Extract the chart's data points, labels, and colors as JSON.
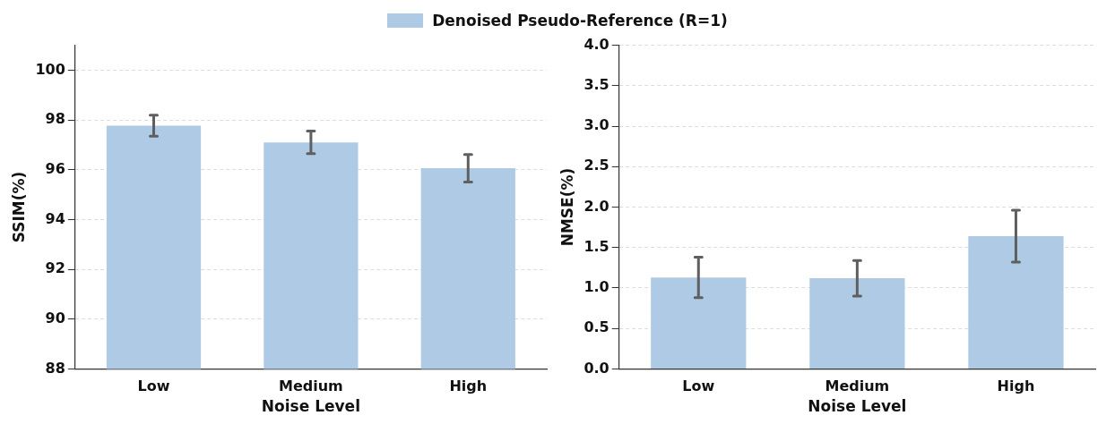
{
  "chart_data": [
    {
      "type": "bar",
      "xlabel": "Noise Level",
      "ylabel": "SSIM(%)",
      "categories": [
        "Low",
        "Medium",
        "High"
      ],
      "series": [
        {
          "name": "Denoised Pseudo-Reference (R=1)",
          "color": "#aecae4",
          "values": [
            97.77,
            97.1,
            96.06
          ],
          "errors": [
            0.42,
            0.45,
            0.55
          ]
        }
      ],
      "ylim": [
        88,
        101
      ],
      "yticks": [
        88,
        90,
        92,
        94,
        96,
        98,
        100
      ],
      "grid": "y",
      "legend": "top"
    },
    {
      "type": "bar",
      "xlabel": "Noise Level",
      "ylabel": "NMSE(%)",
      "categories": [
        "Low",
        "Medium",
        "High"
      ],
      "series": [
        {
          "color": "#aecae4",
          "values": [
            1.13,
            1.12,
            1.64
          ],
          "errors": [
            0.25,
            0.22,
            0.32
          ]
        }
      ],
      "ylim": [
        0,
        4
      ],
      "yticks": [
        {
          "value": 0,
          "label": "0.0"
        },
        0.5,
        {
          "value": 1,
          "label": "1.0"
        },
        1.5,
        {
          "value": 2,
          "label": "2.0"
        },
        2.5,
        {
          "value": 3,
          "label": "3.0"
        },
        3.5,
        {
          "value": 4,
          "label": "4.0"
        }
      ],
      "grid": "y",
      "legend": false
    }
  ]
}
